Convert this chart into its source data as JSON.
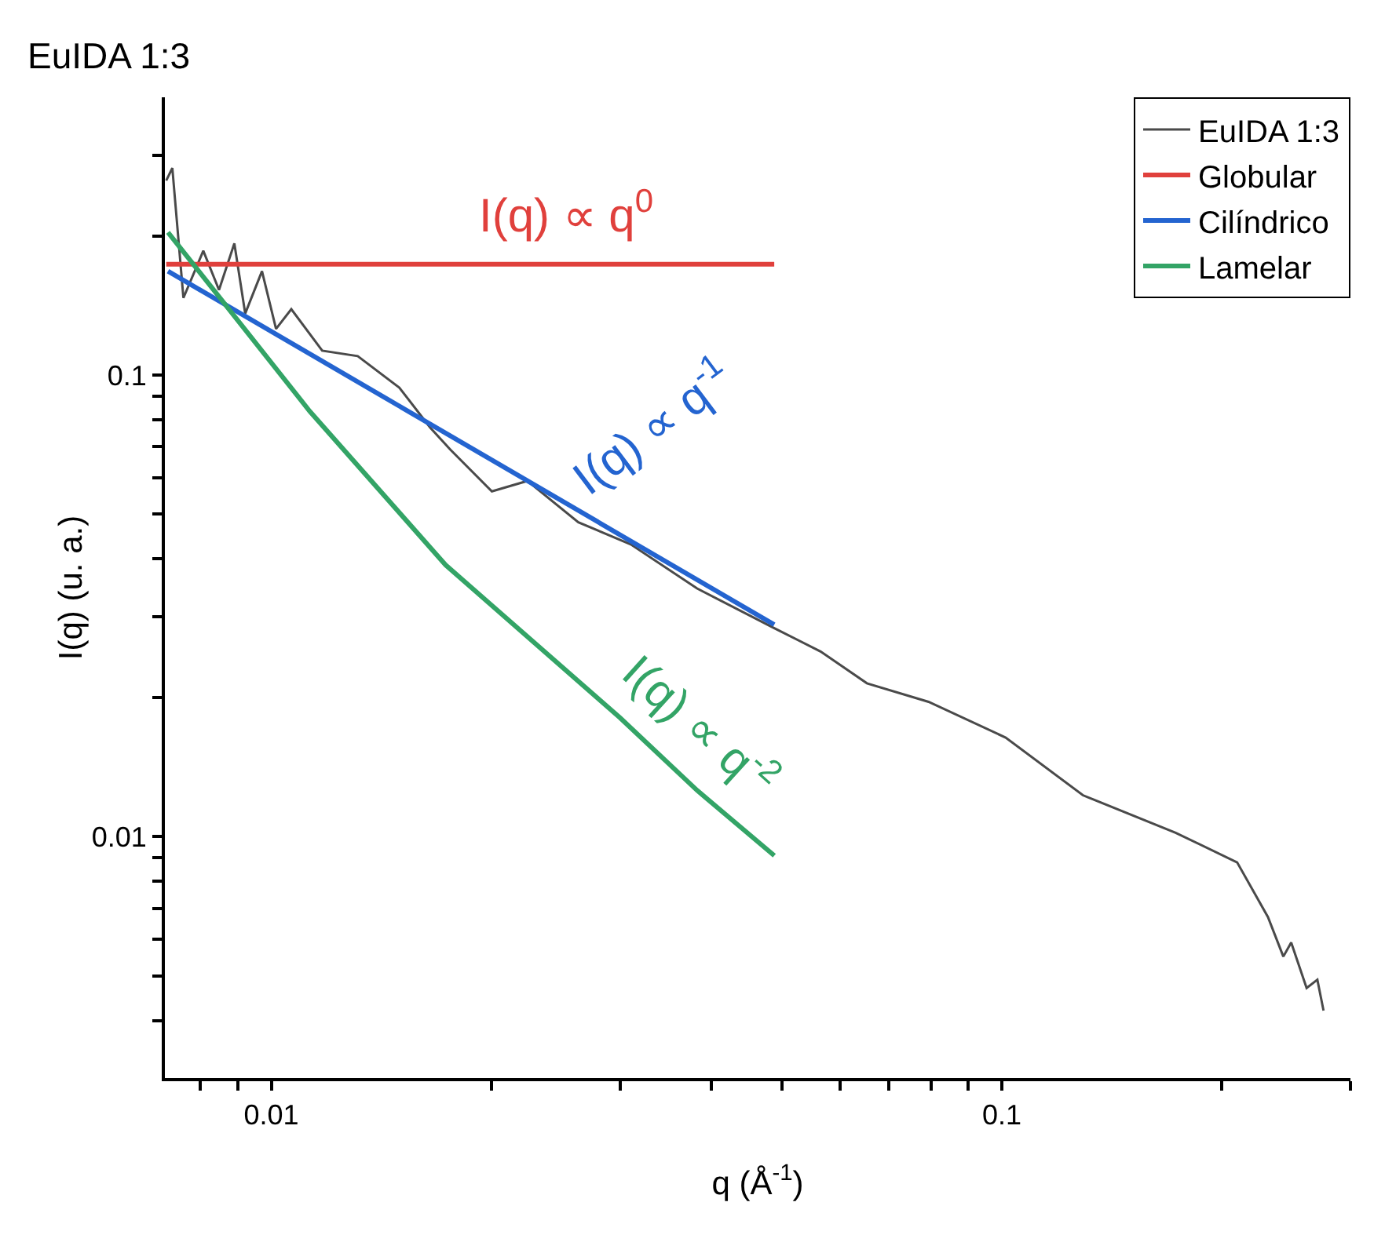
{
  "chart_data": {
    "type": "line",
    "title": "EuIDA 1:3",
    "xlabel": "q (Å$^{-1}$)",
    "ylabel": "I(q) (u. a.)",
    "log": "xy",
    "grid": false,
    "legend": "top right",
    "marker": "none",
    "line_style": "solid",
    "xlim": [
      0.00715,
      0.3
    ],
    "ylim": [
      0.003,
      0.4
    ],
    "xticks": [
      {
        "value": 0.008,
        "label": null
      },
      {
        "value": 0.009,
        "label": null
      },
      0.01,
      {
        "value": 0.02,
        "label": null
      },
      {
        "value": 0.03,
        "label": null
      },
      {
        "value": 0.04,
        "label": null
      },
      {
        "value": 0.05,
        "label": null
      },
      {
        "value": 0.06,
        "label": null
      },
      {
        "value": 0.07,
        "label": null
      },
      {
        "value": 0.08,
        "label": null
      },
      {
        "value": 0.09,
        "label": null
      },
      0.1,
      {
        "value": 0.2,
        "label": null
      },
      {
        "value": 0.3,
        "label": null
      }
    ],
    "yticks": [
      {
        "value": 0.004,
        "label": null
      },
      {
        "value": 0.005,
        "label": null
      },
      {
        "value": 0.006,
        "label": null
      },
      {
        "value": 0.007,
        "label": null
      },
      {
        "value": 0.008,
        "label": null
      },
      {
        "value": 0.009,
        "label": null
      },
      0.01,
      {
        "value": 0.02,
        "label": null
      },
      {
        "value": 0.03,
        "label": null
      },
      {
        "value": 0.04,
        "label": null
      },
      {
        "value": 0.05,
        "label": null
      },
      {
        "value": 0.06,
        "label": null
      },
      {
        "value": 0.07,
        "label": null
      },
      {
        "value": 0.08,
        "label": null
      },
      {
        "value": 0.09,
        "label": null
      },
      0.1,
      {
        "value": 0.2,
        "label": null
      },
      {
        "value": 0.3,
        "label": null
      }
    ],
    "series": [
      {
        "name": "EuIDA 1:3",
        "color": "#4a4a4a",
        "x": [
          0.00718,
          0.00732,
          0.00758,
          0.00807,
          0.00848,
          0.0089,
          0.00921,
          0.00971,
          0.01015,
          0.01065,
          0.01174,
          0.01313,
          0.01497,
          0.0165,
          0.01758,
          0.02004,
          0.02241,
          0.02632,
          0.03105,
          0.03827,
          0.04881,
          0.05647,
          0.06535,
          0.07936,
          0.1012,
          0.1291,
          0.1729,
          0.2099,
          0.2313,
          0.2428,
          0.2489,
          0.2613,
          0.2703,
          0.2756
        ],
        "values": [
          0.264,
          0.281,
          0.147,
          0.186,
          0.153,
          0.193,
          0.136,
          0.168,
          0.126,
          0.139,
          0.113,
          0.11,
          0.094,
          0.077,
          0.069,
          0.056,
          0.059,
          0.048,
          0.043,
          0.0345,
          0.0283,
          0.0252,
          0.0215,
          0.0196,
          0.0164,
          0.0123,
          0.0102,
          0.0088,
          0.0067,
          0.0055,
          0.0059,
          0.0047,
          0.0049,
          0.0042
        ]
      },
      {
        "name": "Globular",
        "color": "#e0403c",
        "x": [
          0.00718,
          0.0488
        ],
        "values": [
          0.174,
          0.174
        ]
      },
      {
        "name": "Cilíndrico",
        "color": "#2464d0",
        "x": [
          0.00722,
          0.0488
        ],
        "values": [
          0.168,
          0.0288
        ]
      },
      {
        "name": "Lamelar",
        "color": "#33a466",
        "x": [
          0.00722,
          0.01129,
          0.01732,
          0.03001,
          0.03827,
          0.04881
        ],
        "values": [
          0.204,
          0.0835,
          0.0388,
          0.0181,
          0.0126,
          0.0091
        ]
      }
    ],
    "annotations": [
      "I(q) ∝ q$^{0}$",
      "I(q) ∝ q$^{-1}$",
      "I(q) ∝ q$^{-2}$"
    ]
  }
}
